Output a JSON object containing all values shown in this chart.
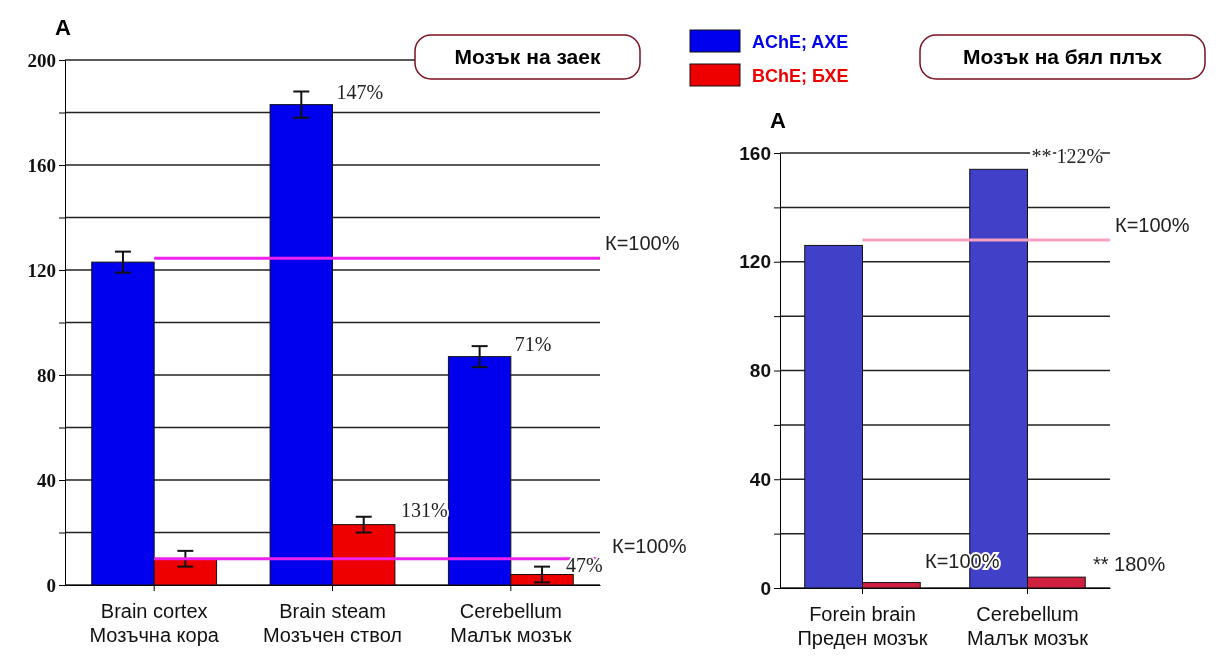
{
  "chart_data": [
    {
      "type": "bar",
      "title": "A",
      "subtitle": "Мозък на заек",
      "categories": [
        "Brain cortex\nМозъчна кора",
        "Brain steam\nМозъчен ствол",
        "Cerebellum\nМалък мозък"
      ],
      "series": [
        {
          "name": "AChE; AXE",
          "color": "#0000ee",
          "values": [
            123,
            183,
            87
          ],
          "errors": [
            4,
            5,
            4
          ]
        },
        {
          "name": "BChE; БХЕ",
          "color": "#ee0000",
          "values": [
            10,
            23,
            4
          ],
          "errors": [
            3,
            3,
            3
          ]
        }
      ],
      "ylim": [
        0,
        200
      ],
      "yticks": [
        0,
        {
          "value": 20,
          "label": null
        },
        40,
        {
          "value": 60,
          "label": null
        },
        80,
        {
          "value": 100,
          "label": null
        },
        120,
        {
          "value": 140,
          "label": null
        },
        160,
        {
          "value": 180,
          "label": null
        },
        200
      ],
      "grid": "y",
      "legend": "top right",
      "ref_lines": [
        {
          "axis": "y",
          "value": 124.5,
          "color": "#ee22ee"
        },
        {
          "axis": "y",
          "value": 10,
          "color": "#ee22ee"
        }
      ],
      "annotations": [
        {
          "text": "147%",
          "x": "Brain steam\nМозъчен ствол",
          "y": 183
        },
        "131%",
        {
          "text": "71%",
          "x": "Cerebellum\nМалък мозък",
          "y": 87
        },
        "47%",
        "К=100%",
        "К=100%"
      ]
    },
    {
      "type": "bar",
      "title": "A",
      "subtitle": "Мозък на бял плъх",
      "categories": [
        "Forein brain\nПреден мозък",
        "Cerebellum\nМалък мозък"
      ],
      "series": [
        {
          "color": "#4040c8",
          "values": [
            126,
            154
          ]
        },
        {
          "color": "#d02040",
          "values": [
            2,
            4
          ]
        }
      ],
      "ylim": [
        0,
        160
      ],
      "yticks": [
        0,
        {
          "value": 20,
          "label": null
        },
        40,
        {
          "value": 60,
          "label": null
        },
        80,
        {
          "value": 100,
          "label": null
        },
        120,
        {
          "value": 140,
          "label": null
        },
        160
      ],
      "grid": "y",
      "ref_lines": [
        {
          "axis": "y",
          "value": 128,
          "color": "#f4a0c0"
        }
      ],
      "annotations": [
        {
          "text": "** 122%",
          "x": "Cerebellum\nМалък мозък",
          "y": 154
        },
        "К=100%",
        "** 180%",
        "К=100%"
      ]
    }
  ]
}
